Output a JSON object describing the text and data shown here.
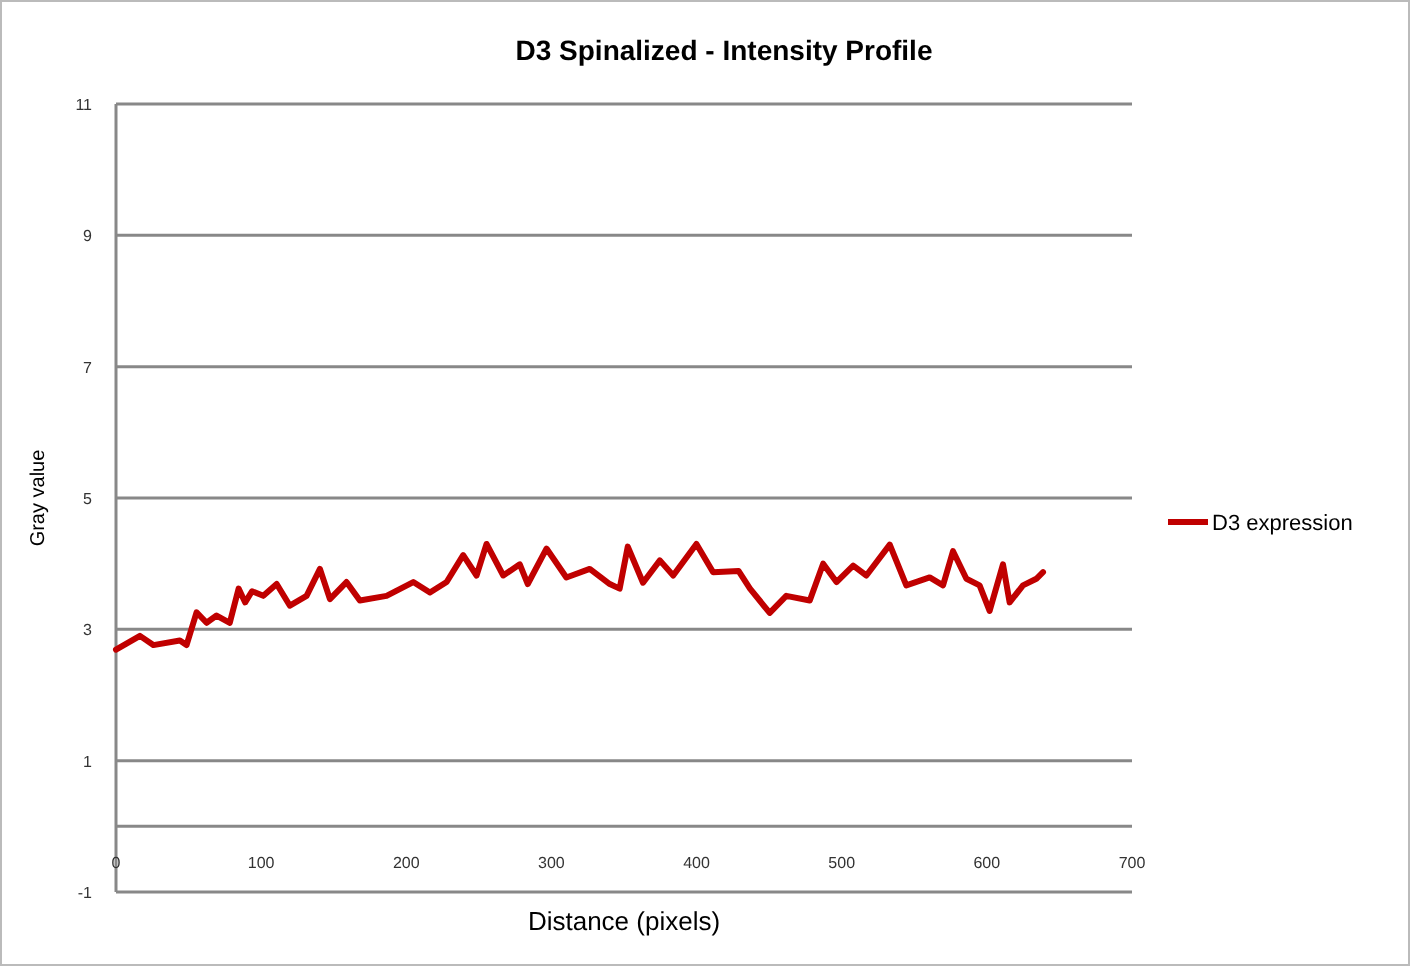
{
  "chart_data": {
    "type": "line",
    "title": "D3 Spinalized - Intensity Profile",
    "xlabel": "Distance (pixels)",
    "ylabel": "Gray value",
    "xlim": [
      0,
      700
    ],
    "xticks": [
      0,
      100,
      200,
      300,
      400,
      500,
      600,
      700
    ],
    "ylim": [
      -1,
      11
    ],
    "yticks": [
      -1,
      1,
      3,
      5,
      7,
      9,
      11
    ],
    "grid": "y",
    "legend": "right",
    "marker": "none",
    "line_style": "solid",
    "series": [
      {
        "name": "D3 expression",
        "color": "#c00000",
        "x": [
          0,
          16.5,
          25.7,
          44,
          48.6,
          55.5,
          62.4,
          69.3,
          78.4,
          84.5,
          89,
          93.7,
          101.5,
          110.7,
          119.8,
          131.3,
          140.5,
          147.4,
          158.8,
          168,
          186.4,
          204.8,
          216.3,
          227.8,
          239.2,
          248.4,
          255.3,
          266.8,
          278.2,
          283.7,
          296.6,
          310.3,
          326.4,
          340.2,
          347,
          352.6,
          363.1,
          374.7,
          383.9,
          399.9,
          411.4,
          428.9,
          436.8,
          450.4,
          461.8,
          478,
          487.2,
          496.4,
          507.9,
          517,
          533.1,
          544.5,
          560.6,
          569.8,
          576.7,
          585.9,
          595,
          601.9,
          611.1,
          615.7,
          624.9,
          634.1,
          638.7
        ],
        "values": [
          2.69,
          2.9,
          2.76,
          2.83,
          2.76,
          3.26,
          3.1,
          3.21,
          3.1,
          3.62,
          3.41,
          3.58,
          3.51,
          3.69,
          3.36,
          3.51,
          3.92,
          3.46,
          3.72,
          3.44,
          3.51,
          3.72,
          3.56,
          3.72,
          4.13,
          3.82,
          4.3,
          3.82,
          3.99,
          3.69,
          4.23,
          3.79,
          3.92,
          3.69,
          3.62,
          4.26,
          3.71,
          4.05,
          3.82,
          4.3,
          3.87,
          3.89,
          3.62,
          3.25,
          3.51,
          3.44,
          4,
          3.72,
          3.97,
          3.82,
          4.29,
          3.67,
          3.79,
          3.67,
          4.19,
          3.77,
          3.67,
          3.28,
          3.99,
          3.41,
          3.67,
          3.77,
          3.87
        ]
      }
    ]
  }
}
